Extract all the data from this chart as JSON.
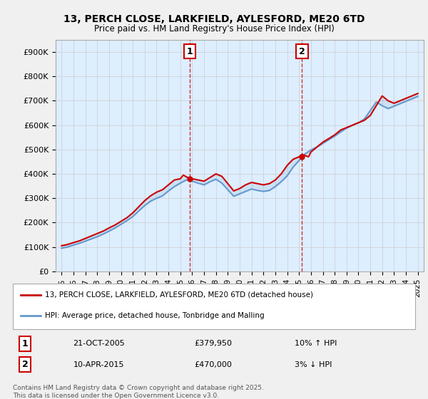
{
  "title1": "13, PERCH CLOSE, LARKFIELD, AYLESFORD, ME20 6TD",
  "title2": "Price paid vs. HM Land Registry's House Price Index (HPI)",
  "legend1": "13, PERCH CLOSE, LARKFIELD, AYLESFORD, ME20 6TD (detached house)",
  "legend2": "HPI: Average price, detached house, Tonbridge and Malling",
  "sale1_label": "1",
  "sale1_date": "21-OCT-2005",
  "sale1_price": "£379,950",
  "sale1_hpi": "10% ↑ HPI",
  "sale2_label": "2",
  "sale2_date": "10-APR-2015",
  "sale2_price": "£470,000",
  "sale2_hpi": "3% ↓ HPI",
  "footer": "Contains HM Land Registry data © Crown copyright and database right 2025.\nThis data is licensed under the Open Government Licence v3.0.",
  "red_color": "#cc0000",
  "blue_color": "#6699cc",
  "vline_color": "#cc0000",
  "bg_color": "#ddeeff",
  "plot_bg": "#ffffff",
  "grid_color": "#cccccc",
  "ylim": [
    0,
    950000
  ],
  "yticks": [
    0,
    100000,
    200000,
    300000,
    400000,
    500000,
    600000,
    700000,
    800000,
    900000
  ],
  "ytick_labels": [
    "£0",
    "£100K",
    "£200K",
    "£300K",
    "£400K",
    "£500K",
    "£600K",
    "£700K",
    "£800K",
    "£900K"
  ],
  "xlim_start": 1994.5,
  "xlim_end": 2025.5,
  "xticks": [
    1995,
    1996,
    1997,
    1998,
    1999,
    2000,
    2001,
    2002,
    2003,
    2004,
    2005,
    2006,
    2007,
    2008,
    2009,
    2010,
    2011,
    2012,
    2013,
    2014,
    2015,
    2016,
    2017,
    2018,
    2019,
    2020,
    2021,
    2022,
    2023,
    2024,
    2025
  ],
  "sale1_x": 2005.8,
  "sale2_x": 2015.25,
  "red_x": [
    1995,
    1995.5,
    1996,
    1996.5,
    1997,
    1997.5,
    1998,
    1998.5,
    1999,
    1999.5,
    2000,
    2000.5,
    2001,
    2001.5,
    2002,
    2002.5,
    2003,
    2003.5,
    2004,
    2004.5,
    2005,
    2005.25,
    2005.8,
    2006,
    2006.5,
    2007,
    2007.5,
    2008,
    2008.5,
    2009,
    2009.5,
    2010,
    2010.5,
    2011,
    2011.5,
    2012,
    2012.5,
    2013,
    2013.5,
    2014,
    2014.5,
    2015,
    2015.25,
    2015.8,
    2016,
    2016.5,
    2017,
    2017.5,
    2018,
    2018.5,
    2019,
    2019.5,
    2020,
    2020.5,
    2021,
    2021.5,
    2022,
    2022.5,
    2023,
    2023.5,
    2024,
    2024.5,
    2025
  ],
  "red_y": [
    105000,
    110000,
    118000,
    125000,
    135000,
    145000,
    155000,
    165000,
    178000,
    190000,
    205000,
    220000,
    240000,
    265000,
    290000,
    310000,
    325000,
    335000,
    355000,
    375000,
    379950,
    395000,
    379950,
    380000,
    375000,
    370000,
    385000,
    400000,
    390000,
    360000,
    330000,
    340000,
    355000,
    365000,
    360000,
    355000,
    360000,
    375000,
    400000,
    435000,
    460000,
    470000,
    480000,
    470000,
    490000,
    510000,
    530000,
    545000,
    560000,
    580000,
    590000,
    600000,
    610000,
    620000,
    640000,
    680000,
    720000,
    700000,
    690000,
    700000,
    710000,
    720000,
    730000
  ],
  "blue_x": [
    1995,
    1995.5,
    1996,
    1996.5,
    1997,
    1997.5,
    1998,
    1998.5,
    1999,
    1999.5,
    2000,
    2000.5,
    2001,
    2001.5,
    2002,
    2002.5,
    2003,
    2003.5,
    2004,
    2004.5,
    2005,
    2005.5,
    2006,
    2006.5,
    2007,
    2007.5,
    2008,
    2008.5,
    2009,
    2009.5,
    2010,
    2010.5,
    2011,
    2011.5,
    2012,
    2012.5,
    2013,
    2013.5,
    2014,
    2014.5,
    2015,
    2015.5,
    2016,
    2016.5,
    2017,
    2017.5,
    2018,
    2018.5,
    2019,
    2019.5,
    2020,
    2020.5,
    2021,
    2021.5,
    2022,
    2022.5,
    2023,
    2023.5,
    2024,
    2024.5,
    2025
  ],
  "blue_y": [
    95000,
    100000,
    108000,
    115000,
    124000,
    133000,
    142000,
    153000,
    165000,
    178000,
    193000,
    208000,
    225000,
    248000,
    270000,
    288000,
    300000,
    310000,
    330000,
    348000,
    362000,
    375000,
    370000,
    362000,
    355000,
    368000,
    378000,
    362000,
    335000,
    308000,
    318000,
    328000,
    338000,
    332000,
    328000,
    332000,
    348000,
    368000,
    392000,
    428000,
    455000,
    482000,
    498000,
    510000,
    525000,
    540000,
    555000,
    572000,
    588000,
    600000,
    610000,
    625000,
    660000,
    695000,
    680000,
    668000,
    678000,
    688000,
    698000,
    708000,
    718000
  ]
}
